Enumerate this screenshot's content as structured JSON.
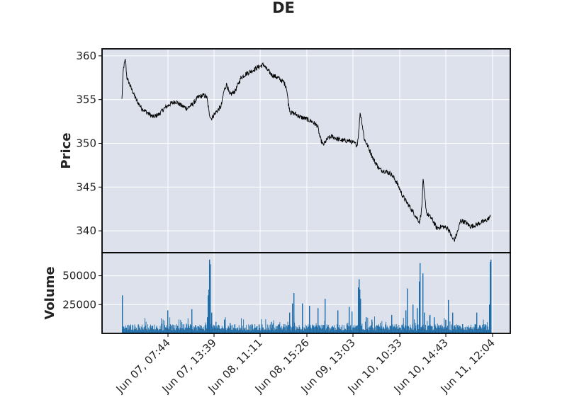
{
  "chart_data": {
    "type": "line",
    "title": "DE",
    "ylabel": "Price",
    "volume_label": "Volume",
    "x_tick_labels": [
      "Jun 07, 07:44",
      "Jun 07, 13:39",
      "Jun 08, 11:11",
      "Jun 08, 15:26",
      "Jun 09, 13:03",
      "Jun 10, 10:33",
      "Jun 10, 14:43",
      "Jun 11, 12:04"
    ],
    "price_ticks": [
      340,
      345,
      350,
      355,
      360
    ],
    "price_ylim": [
      337.5,
      360.8
    ],
    "volume_ticks": [
      25000,
      50000
    ],
    "volume_tick_labels": [
      "25000",
      "50000"
    ],
    "volume_ylim": [
      0,
      70000
    ],
    "grid": true,
    "colors": {
      "panel_bg": "#dce1ec",
      "grid": "#ffffff",
      "price_line": "#000000",
      "volume_bar": "#1f6da8"
    },
    "price_series": {
      "name": "",
      "anchors": [
        [
          0,
          355.0
        ],
        [
          0.01,
          358.5
        ],
        [
          0.025,
          359.6
        ],
        [
          0.035,
          357.5
        ],
        [
          0.06,
          356.5
        ],
        [
          0.1,
          355.0
        ],
        [
          0.14,
          354.0
        ],
        [
          0.18,
          353.5
        ],
        [
          0.22,
          353.0
        ],
        [
          0.26,
          353.3
        ],
        [
          0.3,
          354.0
        ],
        [
          0.34,
          354.5
        ],
        [
          0.38,
          354.8
        ],
        [
          0.42,
          354.3
        ],
        [
          0.46,
          354.0
        ],
        [
          0.5,
          354.5
        ],
        [
          0.54,
          355.3
        ],
        [
          0.58,
          355.5
        ],
        [
          0.6,
          355.2
        ],
        [
          0.615,
          353.5
        ],
        [
          0.63,
          352.8
        ],
        [
          0.66,
          353.5
        ],
        [
          0.7,
          354.2
        ],
        [
          0.72,
          356.0
        ],
        [
          0.74,
          356.8
        ],
        [
          0.76,
          355.5
        ],
        [
          0.8,
          356.0
        ],
        [
          0.84,
          357.5
        ],
        [
          0.88,
          358.0
        ],
        [
          0.92,
          358.3
        ],
        [
          0.96,
          358.7
        ],
        [
          1.0,
          359.0
        ],
        [
          1.02,
          358.5
        ],
        [
          1.06,
          357.8
        ],
        [
          1.1,
          357.5
        ],
        [
          1.14,
          357.0
        ],
        [
          1.16,
          356.5
        ],
        [
          1.175,
          354.5
        ],
        [
          1.19,
          353.5
        ],
        [
          1.22,
          353.4
        ],
        [
          1.26,
          353.0
        ],
        [
          1.3,
          352.8
        ],
        [
          1.34,
          352.5
        ],
        [
          1.38,
          352.0
        ],
        [
          1.4,
          350.5
        ],
        [
          1.42,
          349.8
        ],
        [
          1.45,
          350.5
        ],
        [
          1.48,
          350.8
        ],
        [
          1.52,
          350.5
        ],
        [
          1.56,
          350.3
        ],
        [
          1.6,
          350.3
        ],
        [
          1.64,
          350.0
        ],
        [
          1.66,
          349.8
        ],
        [
          1.672,
          351.5
        ],
        [
          1.68,
          353.5
        ],
        [
          1.69,
          352.8
        ],
        [
          1.71,
          350.5
        ],
        [
          1.74,
          349.5
        ],
        [
          1.78,
          348.0
        ],
        [
          1.82,
          347.0
        ],
        [
          1.86,
          346.8
        ],
        [
          1.9,
          346.5
        ],
        [
          1.94,
          345.5
        ],
        [
          1.98,
          344.0
        ],
        [
          2.02,
          343.0
        ],
        [
          2.06,
          342.0
        ],
        [
          2.08,
          341.5
        ],
        [
          2.1,
          341.0
        ],
        [
          2.115,
          342.5
        ],
        [
          2.125,
          345.8
        ],
        [
          2.135,
          344.0
        ],
        [
          2.15,
          342.0
        ],
        [
          2.18,
          341.5
        ],
        [
          2.2,
          341.0
        ],
        [
          2.22,
          340.3
        ],
        [
          2.26,
          340.5
        ],
        [
          2.3,
          340.3
        ],
        [
          2.33,
          339.2
        ],
        [
          2.345,
          338.9
        ],
        [
          2.37,
          340.0
        ],
        [
          2.39,
          341.2
        ],
        [
          2.42,
          341.0
        ],
        [
          2.46,
          340.5
        ],
        [
          2.5,
          340.7
        ],
        [
          2.54,
          341.0
        ],
        [
          2.57,
          341.2
        ],
        [
          2.6,
          341.6
        ]
      ]
    },
    "volume_spikes": [
      [
        0.0,
        33000
      ],
      [
        0.32,
        20000
      ],
      [
        0.49,
        21000
      ],
      [
        0.6,
        14000
      ],
      [
        0.605,
        33000
      ],
      [
        0.61,
        38000
      ],
      [
        0.615,
        64000
      ],
      [
        0.62,
        60000
      ],
      [
        0.63,
        18000
      ],
      [
        0.66,
        10000
      ],
      [
        0.72,
        12000
      ],
      [
        0.76,
        9000
      ],
      [
        1.05,
        10000
      ],
      [
        1.14,
        8000
      ],
      [
        1.18,
        18000
      ],
      [
        1.2,
        26000
      ],
      [
        1.21,
        35000
      ],
      [
        1.27,
        26000
      ],
      [
        1.32,
        24000
      ],
      [
        1.38,
        22000
      ],
      [
        1.43,
        30000
      ],
      [
        1.52,
        20000
      ],
      [
        1.6,
        23000
      ],
      [
        1.62,
        19000
      ],
      [
        1.665,
        40000
      ],
      [
        1.67,
        47000
      ],
      [
        1.675,
        38000
      ],
      [
        1.68,
        30000
      ],
      [
        1.72,
        14000
      ],
      [
        1.76,
        12000
      ],
      [
        1.9,
        16000
      ],
      [
        2.0,
        20000
      ],
      [
        2.01,
        39000
      ],
      [
        2.05,
        25000
      ],
      [
        2.08,
        22000
      ],
      [
        2.095,
        45000
      ],
      [
        2.1,
        61000
      ],
      [
        2.12,
        52000
      ],
      [
        2.13,
        18000
      ],
      [
        2.17,
        16000
      ],
      [
        2.2,
        14000
      ],
      [
        2.3,
        29000
      ],
      [
        2.33,
        18000
      ],
      [
        2.4,
        8000
      ],
      [
        2.5,
        18000
      ],
      [
        2.55,
        8000
      ],
      [
        2.59,
        25000
      ],
      [
        2.595,
        62000
      ],
      [
        2.6,
        64000
      ]
    ]
  }
}
